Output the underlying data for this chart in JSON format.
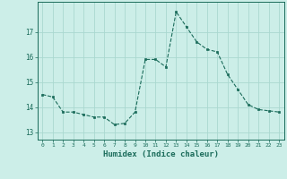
{
  "x": [
    0,
    1,
    2,
    3,
    4,
    5,
    6,
    7,
    8,
    9,
    10,
    11,
    12,
    13,
    14,
    15,
    16,
    17,
    18,
    19,
    20,
    21,
    22,
    23
  ],
  "y": [
    14.5,
    14.4,
    13.8,
    13.8,
    13.7,
    13.6,
    13.6,
    13.3,
    13.35,
    13.8,
    15.9,
    15.9,
    15.6,
    17.8,
    17.2,
    16.6,
    16.3,
    16.2,
    15.3,
    14.7,
    14.1,
    13.9,
    13.85,
    13.8
  ],
  "xlabel": "Humidex (Indice chaleur)",
  "xlim": [
    -0.5,
    23.5
  ],
  "ylim": [
    12.7,
    18.2
  ],
  "yticks": [
    13,
    14,
    15,
    16,
    17
  ],
  "xticks": [
    0,
    1,
    2,
    3,
    4,
    5,
    6,
    7,
    8,
    9,
    10,
    11,
    12,
    13,
    14,
    15,
    16,
    17,
    18,
    19,
    20,
    21,
    22,
    23
  ],
  "line_color": "#1a6b5a",
  "marker_color": "#1a6b5a",
  "bg_color": "#cceee8",
  "grid_color": "#aad8d0",
  "axis_color": "#1a6b5a",
  "tick_color": "#1a6b5a",
  "label_color": "#1a6b5a"
}
